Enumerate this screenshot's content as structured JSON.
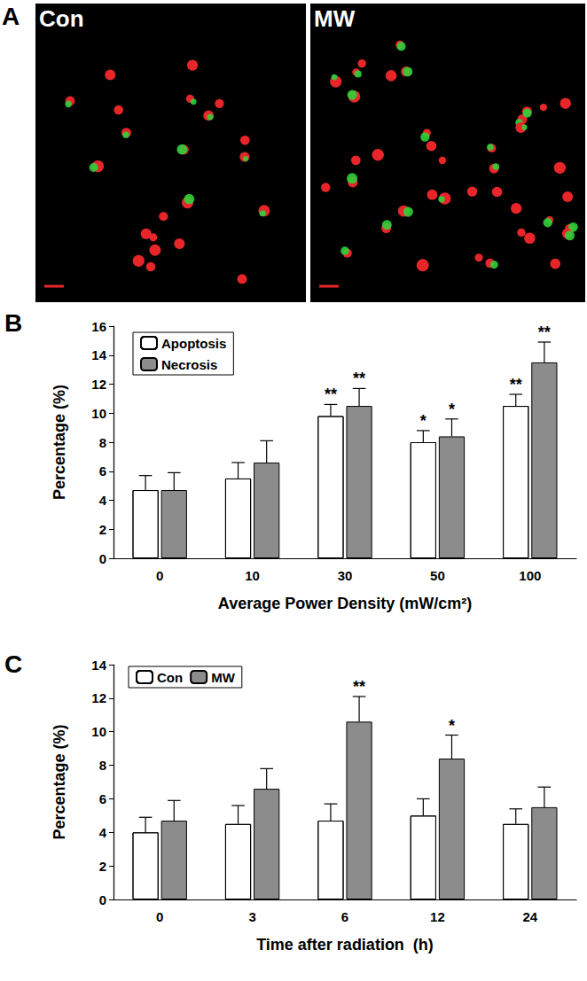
{
  "image_panel": {
    "label": "A",
    "images": [
      "Con",
      "MW"
    ]
  },
  "chart_data": [
    {
      "type": "bar",
      "title": "B",
      "categories": [
        "0",
        "10",
        "30",
        "50",
        "100"
      ],
      "x_label": "Average Power Density (mW/cm²)",
      "y_label": "Percentage (%)",
      "ylim": [
        0,
        16
      ],
      "yticks": [
        0,
        2,
        4,
        6,
        8,
        10,
        12,
        14,
        16
      ],
      "grid": false,
      "legend": "upper left",
      "series": [
        {
          "name": "Apoptosis",
          "color": "#ffffff",
          "marker": "hatch",
          "values": [
            4.7,
            5.5,
            9.8,
            8.0,
            10.5
          ],
          "errors": [
            1.0,
            1.1,
            0.8,
            0.8,
            0.8
          ],
          "significance": [
            null,
            null,
            "**",
            "*",
            "**"
          ]
        },
        {
          "name": "Necrosis",
          "color": "#8c8c8c",
          "marker": "solid",
          "values": [
            4.7,
            6.6,
            10.5,
            8.4,
            13.5
          ],
          "errors": [
            1.2,
            1.5,
            1.2,
            1.2,
            1.4
          ],
          "significance": [
            null,
            null,
            "**",
            "*",
            "**"
          ]
        }
      ]
    },
    {
      "type": "bar",
      "title": "C",
      "categories": [
        "0",
        "3",
        "6",
        "12",
        "24"
      ],
      "x_label": "Time after radiation  (h)",
      "y_label": "Percentage (%)",
      "ylim": [
        0,
        14
      ],
      "yticks": [
        0,
        2,
        4,
        6,
        8,
        10,
        12,
        14
      ],
      "grid": false,
      "legend": "upper left",
      "series": [
        {
          "name": "Con",
          "color": "#ffffff",
          "marker": "hatch",
          "values": [
            4.0,
            4.5,
            4.7,
            5.0,
            4.5
          ],
          "errors": [
            0.9,
            1.1,
            1.0,
            1.0,
            0.9
          ],
          "significance": [
            null,
            null,
            null,
            null,
            null
          ]
        },
        {
          "name": "MW",
          "color": "#8c8c8c",
          "marker": "solid",
          "values": [
            4.7,
            6.6,
            10.6,
            8.4,
            5.5
          ],
          "errors": [
            1.2,
            1.2,
            1.5,
            1.4,
            1.2
          ],
          "significance": [
            null,
            null,
            "**",
            "*",
            null
          ]
        }
      ]
    }
  ]
}
